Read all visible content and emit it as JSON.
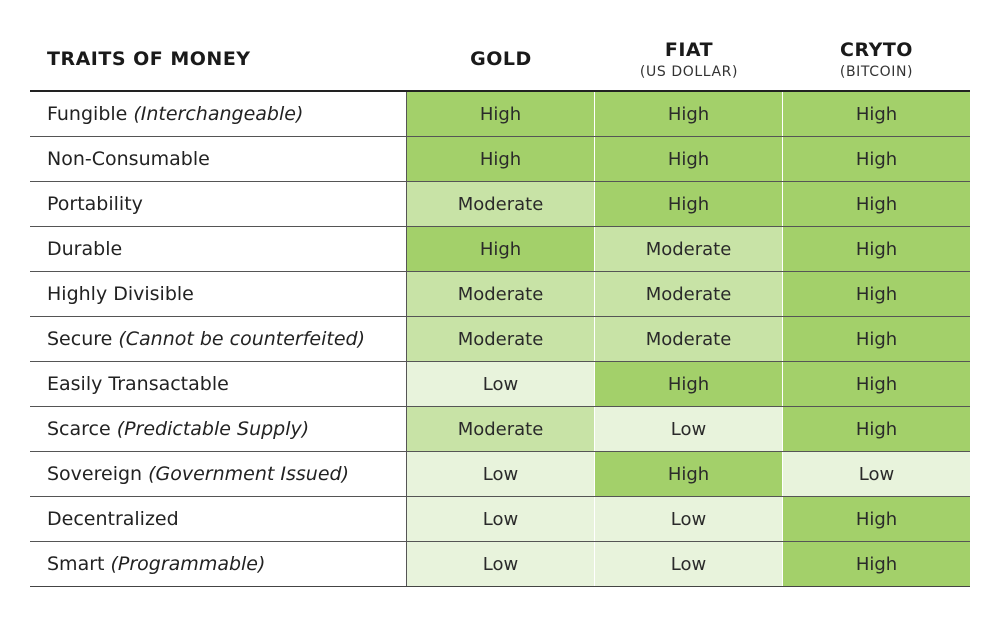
{
  "header": {
    "traits_label": "TRAITS OF MONEY",
    "columns": [
      {
        "title": "GOLD",
        "subtitle": ""
      },
      {
        "title": "FIAT",
        "subtitle": "(US DOLLAR)"
      },
      {
        "title": "CRYTO",
        "subtitle": "(BITCOIN)"
      }
    ]
  },
  "colors": {
    "high": "#a3d06a",
    "moderate": "#c8e3a6",
    "low": "#e8f3dc"
  },
  "rows": [
    {
      "trait": "Fungible",
      "note": "(Interchangeable)",
      "values": [
        "High",
        "High",
        "High"
      ]
    },
    {
      "trait": "Non-Consumable",
      "note": "",
      "values": [
        "High",
        "High",
        "High"
      ]
    },
    {
      "trait": "Portability",
      "note": "",
      "values": [
        "Moderate",
        "High",
        "High"
      ]
    },
    {
      "trait": "Durable",
      "note": "",
      "values": [
        "High",
        "Moderate",
        "High"
      ]
    },
    {
      "trait": "Highly Divisible",
      "note": "",
      "values": [
        "Moderate",
        "Moderate",
        "High"
      ]
    },
    {
      "trait": "Secure",
      "note": "(Cannot be counterfeited)",
      "values": [
        "Moderate",
        "Moderate",
        "High"
      ]
    },
    {
      "trait": "Easily Transactable",
      "note": "",
      "values": [
        "Low",
        "High",
        "High"
      ]
    },
    {
      "trait": "Scarce",
      "note": "(Predictable Supply)",
      "values": [
        "Moderate",
        "Low",
        "High"
      ]
    },
    {
      "trait": "Sovereign",
      "note": "(Government Issued)",
      "values": [
        "Low",
        "High",
        "Low"
      ]
    },
    {
      "trait": "Decentralized",
      "note": "",
      "values": [
        "Low",
        "Low",
        "High"
      ]
    },
    {
      "trait": "Smart",
      "note": "(Programmable)",
      "values": [
        "Low",
        "Low",
        "High"
      ]
    }
  ]
}
